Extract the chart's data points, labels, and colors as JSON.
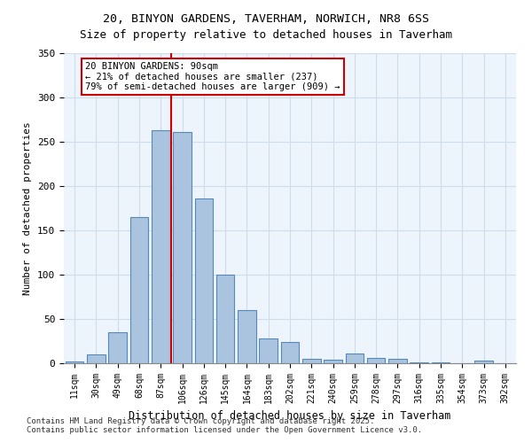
{
  "title_line1": "20, BINYON GARDENS, TAVERHAM, NORWICH, NR8 6SS",
  "title_line2": "Size of property relative to detached houses in Taverham",
  "xlabel": "Distribution of detached houses by size in Taverham",
  "ylabel": "Number of detached properties",
  "categories": [
    "11sqm",
    "30sqm",
    "49sqm",
    "68sqm",
    "87sqm",
    "106sqm",
    "126sqm",
    "145sqm",
    "164sqm",
    "183sqm",
    "202sqm",
    "221sqm",
    "240sqm",
    "259sqm",
    "278sqm",
    "297sqm",
    "316sqm",
    "335sqm",
    "354sqm",
    "373sqm",
    "392sqm"
  ],
  "values": [
    2,
    10,
    35,
    165,
    263,
    261,
    186,
    100,
    60,
    28,
    24,
    5,
    4,
    11,
    6,
    5,
    1,
    1,
    0,
    3,
    0
  ],
  "bar_color": "#aac4e0",
  "bar_edge_color": "#5588bb",
  "red_line_x": 4,
  "annotation_text": "20 BINYON GARDENS: 90sqm\n← 21% of detached houses are smaller (237)\n79% of semi-detached houses are larger (909) →",
  "annotation_box_color": "#ffffff",
  "annotation_box_edge": "#cc0000",
  "red_line_color": "#cc0000",
  "grid_color": "#ccddee",
  "background_color": "#eef4fb",
  "ylim": [
    0,
    350
  ],
  "yticks": [
    0,
    50,
    100,
    150,
    200,
    250,
    300,
    350
  ],
  "footnote": "Contains HM Land Registry data © Crown copyright and database right 2025.\nContains public sector information licensed under the Open Government Licence v3.0."
}
